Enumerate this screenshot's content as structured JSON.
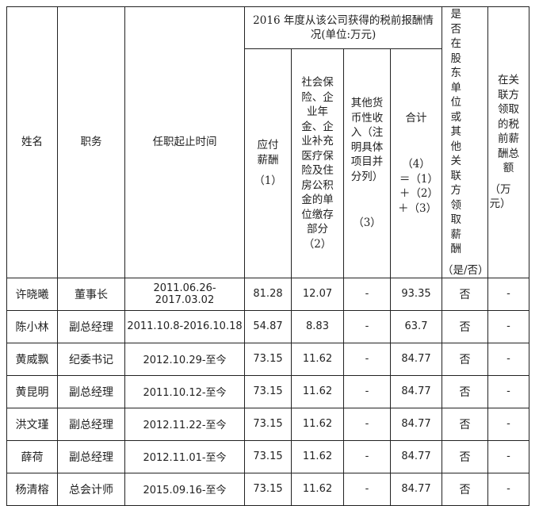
{
  "header": {
    "name": "姓名",
    "position": "职务",
    "term": "任职起止时间",
    "group": "2016 年度从该公司获得的税前报酬情况(单位:万元)",
    "salary": "应付薪酬",
    "salary_no": "（1）",
    "social": "社会保险、企业年金、企业补充医疗保险及住房公积金的单位缴存部分",
    "social_no": "（2）",
    "other": "其他货币性收入（注明具体项目并分列）",
    "other_no": "（3）",
    "total": "合计",
    "total_no": "（4）＝（1）＋（2）＋（3）",
    "related": "是否在股东单位或其他关联方领取薪酬",
    "related_no": "（是/否）",
    "related_total": "在关联方领取的税前薪酬总额",
    "related_total_no": "（万元）"
  },
  "rows": [
    [
      "许晓曦",
      "董事长",
      "2011.06.26-2017.03.02",
      "81.28",
      "12.07",
      "-",
      "93.35",
      "否",
      "-"
    ],
    [
      "陈小林",
      "副总经理",
      "2011.10.8-2016.10.18",
      "54.87",
      "8.83",
      "-",
      "63.7",
      "否",
      "-"
    ],
    [
      "黄威飘",
      "纪委书记",
      "2012.10.29-至今",
      "73.15",
      "11.62",
      "-",
      "84.77",
      "否",
      "-"
    ],
    [
      "黄昆明",
      "副总经理",
      "2011.10.12-至今",
      "73.15",
      "11.62",
      "-",
      "84.77",
      "否",
      "-"
    ],
    [
      "洪文瑾",
      "副总经理",
      "2012.11.22-至今",
      "73.15",
      "11.62",
      "-",
      "84.77",
      "否",
      "-"
    ],
    [
      "薛荷",
      "副总经理",
      "2012.11.01-至今",
      "73.15",
      "11.62",
      "-",
      "84.77",
      "否",
      "-"
    ],
    [
      "杨清榕",
      "总会计师",
      "2015.09.16-至今",
      "73.15",
      "11.62",
      "-",
      "84.77",
      "否",
      "-"
    ]
  ]
}
